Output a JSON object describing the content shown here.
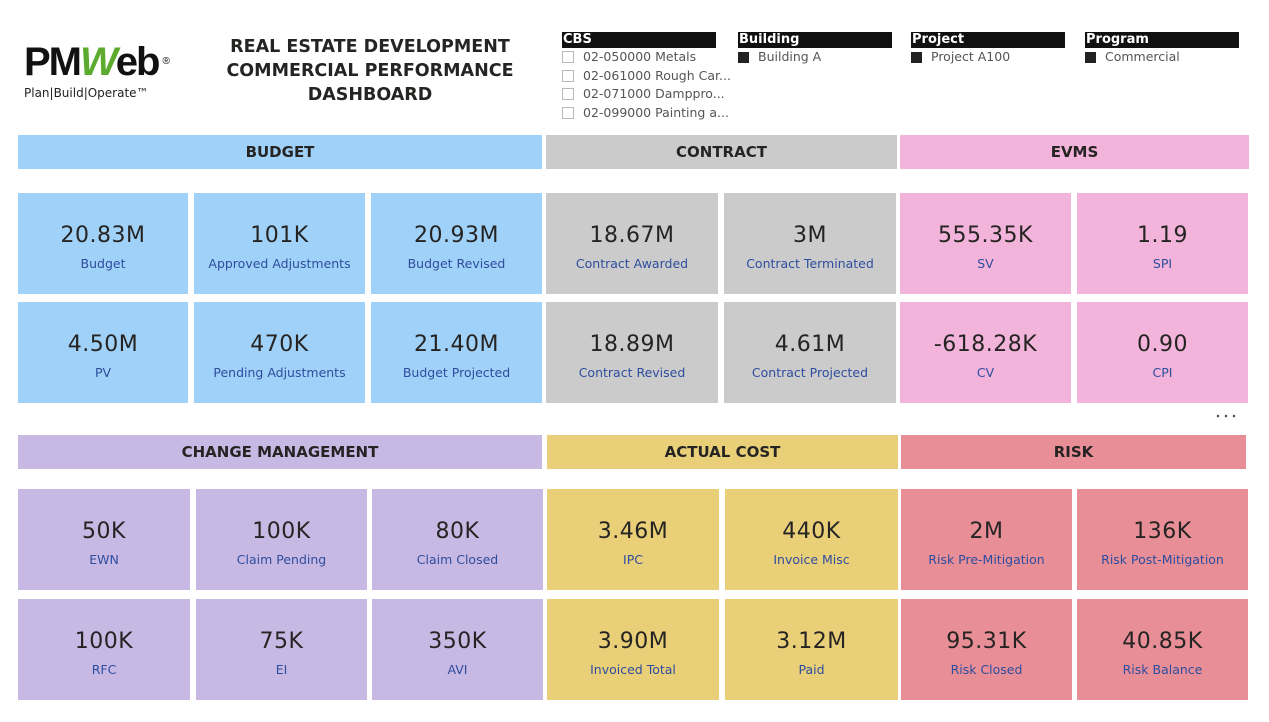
{
  "header": {
    "logo": {
      "prefix": "PM",
      "mark": "W",
      "suffix": "eb",
      "registered": "®",
      "tagline": "Plan|Build|Operate™"
    },
    "title": [
      "REAL ESTATE DEVELOPMENT",
      "COMMERCIAL PERFORMANCE",
      "DASHBOARD"
    ]
  },
  "filters": [
    {
      "title": "CBS",
      "type": "checkbox",
      "items": [
        "02-050000 Metals",
        "02-061000 Rough Car...",
        "02-071000 Damppro...",
        "02-099000 Painting a..."
      ]
    },
    {
      "title": "Building",
      "type": "selected",
      "items": [
        "Building A"
      ]
    },
    {
      "title": "Project",
      "type": "selected",
      "items": [
        "Project A100"
      ]
    },
    {
      "title": "Program",
      "type": "selected",
      "items": [
        "Commercial"
      ]
    }
  ],
  "sections": [
    {
      "title": "BUDGET",
      "color": "#a0d1f8",
      "cards": [
        {
          "value": "20.83M",
          "label": "Budget"
        },
        {
          "value": "101K",
          "label": "Approved Adjustments"
        },
        {
          "value": "20.93M",
          "label": "Budget Revised"
        },
        {
          "value": "4.50M",
          "label": "PV"
        },
        {
          "value": "470K",
          "label": "Pending Adjustments"
        },
        {
          "value": "21.40M",
          "label": "Budget Projected"
        }
      ]
    },
    {
      "title": "CONTRACT",
      "color": "#cbcbcb",
      "cards": [
        {
          "value": "18.67M",
          "label": "Contract Awarded"
        },
        {
          "value": "3M",
          "label": "Contract Terminated"
        },
        {
          "value": "18.89M",
          "label": "Contract Revised"
        },
        {
          "value": "4.61M",
          "label": "Contract Projected"
        }
      ]
    },
    {
      "title": "EVMS",
      "color": "#f2b4da",
      "cards": [
        {
          "value": "555.35K",
          "label": "SV"
        },
        {
          "value": "1.19",
          "label": "SPI"
        },
        {
          "value": "-618.28K",
          "label": "CV"
        },
        {
          "value": "0.90",
          "label": "CPI"
        }
      ]
    },
    {
      "title": "CHANGE MANAGEMENT",
      "color": "#c8b9e4",
      "cards": [
        {
          "value": "50K",
          "label": "EWN"
        },
        {
          "value": "100K",
          "label": "Claim Pending"
        },
        {
          "value": "80K",
          "label": "Claim Closed"
        },
        {
          "value": "100K",
          "label": "RFC"
        },
        {
          "value": "75K",
          "label": "EI"
        },
        {
          "value": "350K",
          "label": "AVI"
        }
      ]
    },
    {
      "title": "ACTUAL COST",
      "color": "#e9cf78",
      "cards": [
        {
          "value": "3.46M",
          "label": "IPC"
        },
        {
          "value": "440K",
          "label": "Invoice Misc"
        },
        {
          "value": "3.90M",
          "label": "Invoiced Total"
        },
        {
          "value": "3.12M",
          "label": "Paid"
        }
      ]
    },
    {
      "title": "RISK",
      "color": "#e88e97",
      "cards": [
        {
          "value": "2M",
          "label": "Risk Pre-Mitigation"
        },
        {
          "value": "136K",
          "label": "Risk Post-Mitigation"
        },
        {
          "value": "95.31K",
          "label": "Risk Closed"
        },
        {
          "value": "40.85K",
          "label": "Risk Balance"
        }
      ]
    }
  ]
}
